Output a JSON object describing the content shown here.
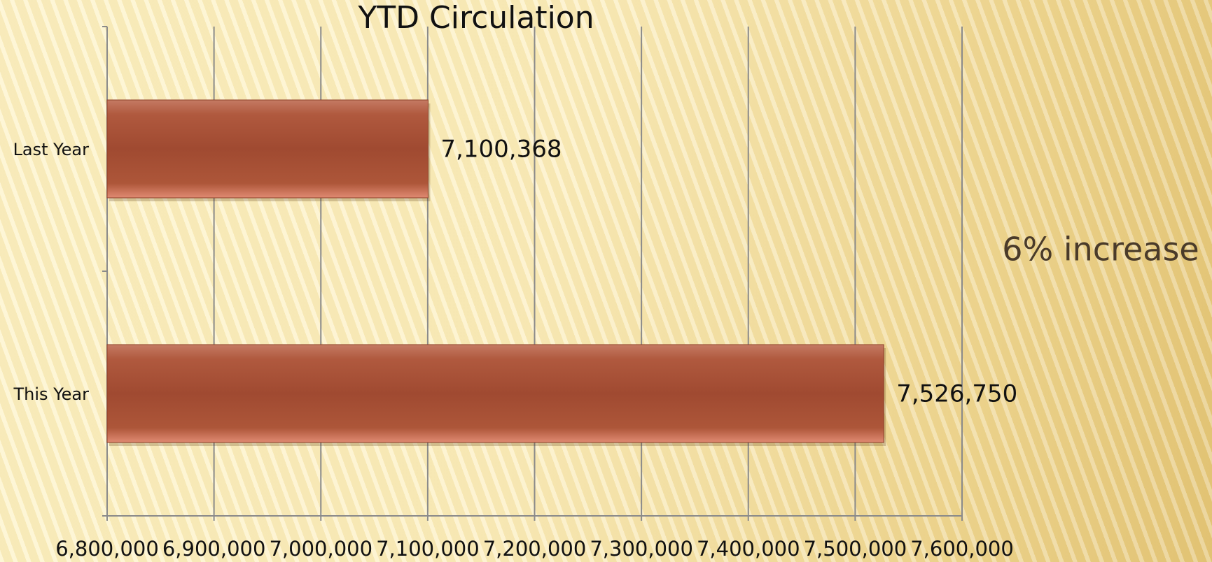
{
  "chart_data": {
    "type": "bar",
    "orientation": "horizontal",
    "title": "YTD Circulation",
    "categories": [
      "Last Year",
      "This Year"
    ],
    "values": [
      7100368,
      7526750
    ],
    "value_labels": [
      "7,100,368",
      "7,526,750"
    ],
    "color": "#a84f36",
    "xlim": [
      6800000,
      7600000
    ],
    "xticks": [
      {
        "value": 6800000,
        "label": "6,800,000"
      },
      {
        "value": 6900000,
        "label": "6,900,000"
      },
      {
        "value": 7000000,
        "label": "7,000,000"
      },
      {
        "value": 7100000,
        "label": "7,100,000"
      },
      {
        "value": 7200000,
        "label": "7,200,000"
      },
      {
        "value": 7300000,
        "label": "7,300,000"
      },
      {
        "value": 7400000,
        "label": "7,400,000"
      },
      {
        "value": 7500000,
        "label": "7,500,000"
      },
      {
        "value": 7600000,
        "label": "7,600,000"
      }
    ],
    "grid": true,
    "annotation": "6% increase"
  }
}
